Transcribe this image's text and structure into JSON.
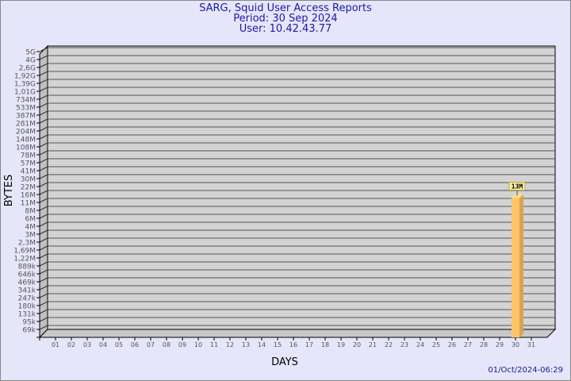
{
  "header": {
    "title": "SARG, Squid User Access Reports",
    "period": "Period: 30 Sep 2024",
    "user": "User: 10.42.43.77"
  },
  "timestamp": "01/Oct/2024-06:29",
  "colors": {
    "background": "#e6e6fa",
    "plot": "#d3d3d3",
    "bar": "#ffc56a",
    "bar_side": "#dca24e",
    "bar_top": "#ffe08a",
    "label_bg": "#ffeea0",
    "title": "#1a1aa6"
  },
  "chart_data": {
    "type": "bar",
    "title": "SARG, Squid User Access Reports",
    "xlabel": "DAYS",
    "ylabel": "BYTES",
    "y_scale": "log",
    "grid": true,
    "y_ticks": [
      "5G",
      "4G",
      "2,6G",
      "1,92G",
      "1,39G",
      "1,01G",
      "734M",
      "533M",
      "387M",
      "281M",
      "204M",
      "148M",
      "108M",
      "78M",
      "57M",
      "41M",
      "30M",
      "22M",
      "16M",
      "11M",
      "8M",
      "6M",
      "4M",
      "3M",
      "2,3M",
      "1,69M",
      "1,22M",
      "889k",
      "646k",
      "469k",
      "341k",
      "247k",
      "180k",
      "131k",
      "95k",
      "69k"
    ],
    "categories": [
      "01",
      "02",
      "03",
      "04",
      "05",
      "06",
      "07",
      "08",
      "09",
      "10",
      "11",
      "12",
      "13",
      "14",
      "15",
      "16",
      "17",
      "18",
      "19",
      "20",
      "21",
      "22",
      "23",
      "24",
      "25",
      "26",
      "27",
      "28",
      "29",
      "30",
      "31"
    ],
    "bars": [
      {
        "day": "30",
        "value": 13000000,
        "label": "13M"
      }
    ]
  }
}
